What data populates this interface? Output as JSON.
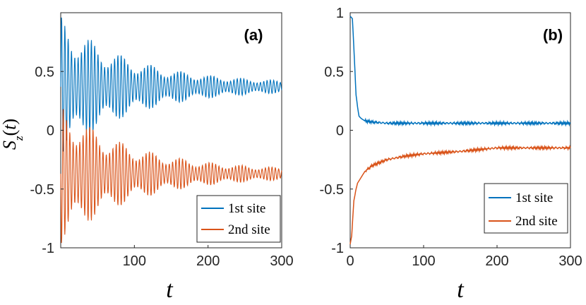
{
  "chart_data": [
    {
      "type": "line",
      "panel_label": "(a)",
      "xlabel": "t",
      "ylabel": "S_z(t)",
      "xlim": [
        0,
        300
      ],
      "ylim": [
        -1,
        1
      ],
      "xticks": [
        "100",
        "200",
        "300"
      ],
      "yticks": [
        "-1",
        "-0.5",
        "0",
        "0.5"
      ],
      "grid": false,
      "legend": "bottom-right",
      "series": [
        {
          "name": "1st site",
          "color": "#0072BD",
          "mean": 0.37,
          "oscillation_amplitude_start": 0.6,
          "oscillation_amplitude_end": 0.03,
          "period": 4.5
        },
        {
          "name": "2nd site",
          "color": "#D95319",
          "mean": -0.37,
          "oscillation_amplitude_start": 0.6,
          "oscillation_amplitude_end": 0.03,
          "period": 4.5
        }
      ]
    },
    {
      "type": "line",
      "panel_label": "(b)",
      "xlabel": "t",
      "ylabel": "",
      "xlim": [
        0,
        300
      ],
      "ylim": [
        -1,
        1
      ],
      "xticks": [
        "0",
        "100",
        "200",
        "300"
      ],
      "yticks": [
        "-1",
        "-0.5",
        "0",
        "0.5",
        "1"
      ],
      "grid": false,
      "legend": "bottom-right",
      "series": [
        {
          "name": "1st site",
          "color": "#0072BD",
          "x": [
            0,
            3,
            5,
            8,
            10,
            12,
            15,
            20,
            30,
            50,
            100,
            150,
            200,
            250,
            300
          ],
          "y": [
            0.97,
            0.95,
            0.7,
            0.3,
            0.2,
            0.12,
            0.1,
            0.08,
            0.07,
            0.06,
            0.06,
            0.06,
            0.06,
            0.06,
            0.06
          ]
        },
        {
          "name": "2nd site",
          "color": "#D95319",
          "x": [
            0,
            2,
            5,
            8,
            10,
            15,
            20,
            30,
            50,
            75,
            100,
            150,
            200,
            250,
            300
          ],
          "y": [
            -0.97,
            -0.9,
            -0.6,
            -0.5,
            -0.45,
            -0.4,
            -0.35,
            -0.3,
            -0.25,
            -0.22,
            -0.2,
            -0.18,
            -0.15,
            -0.15,
            -0.15
          ]
        }
      ]
    }
  ]
}
